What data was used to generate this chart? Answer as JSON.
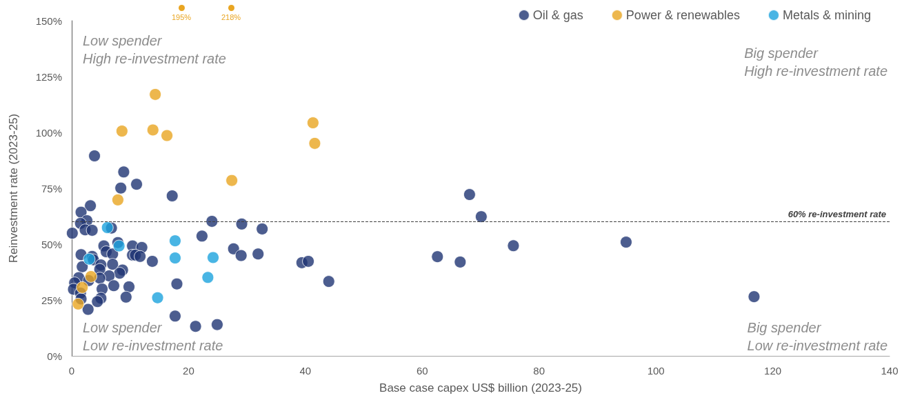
{
  "chart_data": {
    "type": "scatter",
    "xlabel": "Base case capex US$ billion (2023-25)",
    "ylabel": "Reinvestment rate (2023-25)",
    "xlim": [
      0,
      140
    ],
    "xticks": [
      0,
      20,
      40,
      60,
      80,
      100,
      120,
      140
    ],
    "ylim": [
      0,
      150
    ],
    "yticks": [
      {
        "value": 0,
        "label": "0%"
      },
      {
        "value": 25,
        "label": "25%"
      },
      {
        "value": 50,
        "label": "50%"
      },
      {
        "value": 75,
        "label": "75%"
      },
      {
        "value": 100,
        "label": "100%"
      },
      {
        "value": 125,
        "label": "125%"
      },
      {
        "value": 150,
        "label": "150%"
      }
    ],
    "grid": false,
    "legend": "top right",
    "marker": "circle",
    "series": [
      {
        "name": "Oil & gas",
        "color": "#1f3473",
        "x": [
          3.9,
          8.9,
          11.1,
          8.4,
          17.2,
          3.2,
          1.6,
          2.6,
          1.5,
          2.3,
          3.5,
          0.1,
          6.8,
          24.0,
          29.1,
          22.3,
          7.9,
          5.5,
          10.4,
          12.0,
          5.9,
          7.0,
          10.4,
          10.9,
          11.7,
          27.7,
          29.0,
          31.9,
          1.6,
          3.5,
          3.7,
          13.8,
          1.8,
          5.0,
          4.8,
          7.0,
          8.7,
          8.2,
          6.4,
          4.8,
          1.2,
          0.5,
          0.3,
          1.5,
          1.6,
          7.2,
          9.8,
          5.2,
          5.0,
          4.4,
          9.3,
          2.8,
          18.0,
          17.7,
          21.2,
          24.9,
          2.9,
          32.6,
          39.4,
          40.5,
          44.0,
          62.6,
          66.5,
          68.1,
          70.1,
          75.6,
          94.9,
          116.8
        ],
        "values": [
          89.5,
          82.3,
          76.8,
          75.1,
          71.6,
          67.2,
          64.3,
          60.5,
          59.3,
          56.4,
          56.2,
          54.9,
          57.2,
          60.2,
          59.0,
          53.6,
          50.7,
          49.2,
          49.2,
          48.5,
          46.6,
          45.6,
          45.1,
          45.1,
          44.5,
          47.9,
          44.9,
          45.6,
          45.3,
          44.5,
          43.0,
          42.3,
          39.9,
          40.7,
          38.7,
          41.0,
          38.4,
          37.0,
          35.8,
          34.8,
          35.0,
          32.7,
          29.8,
          28.1,
          25.5,
          31.4,
          30.9,
          29.9,
          25.8,
          24.3,
          26.3,
          20.8,
          32.2,
          17.8,
          13.2,
          14.0,
          33.7,
          56.8,
          41.7,
          42.3,
          33.3,
          44.4,
          42.0,
          72.2,
          62.3,
          49.3,
          50.9,
          26.5
        ]
      },
      {
        "name": "Power & renewables",
        "color": "#e9a521",
        "x": [
          8.6,
          13.9,
          16.3,
          27.4,
          7.9,
          3.3,
          1.8,
          1.1,
          14.3,
          41.3,
          41.6
        ],
        "values": [
          100.6,
          101.1,
          98.6,
          78.5,
          69.8,
          35.5,
          30.6,
          23.2,
          117.0,
          104.3,
          95.1
        ]
      },
      {
        "name": "Metals & mining",
        "color": "#1ba3dd",
        "x": [
          6.1,
          8.1,
          3.0,
          17.7,
          17.7,
          24.2,
          23.3,
          14.7
        ],
        "values": [
          57.4,
          49.2,
          43.3,
          51.5,
          43.8,
          44.0,
          35.1,
          26.0
        ]
      }
    ],
    "ref_lines": [
      {
        "axis": "y",
        "value": 60,
        "label": "60% re-investment rate",
        "line_style": "dashed",
        "color": "#404040"
      }
    ],
    "annotations": [
      "Low spender\nHigh re-investment rate",
      "Big spender\nHigh re-investment rate",
      "Low spender\nLow re-investment rate",
      "Big spender\nLow re-investment rate",
      "195%",
      "218%"
    ]
  }
}
